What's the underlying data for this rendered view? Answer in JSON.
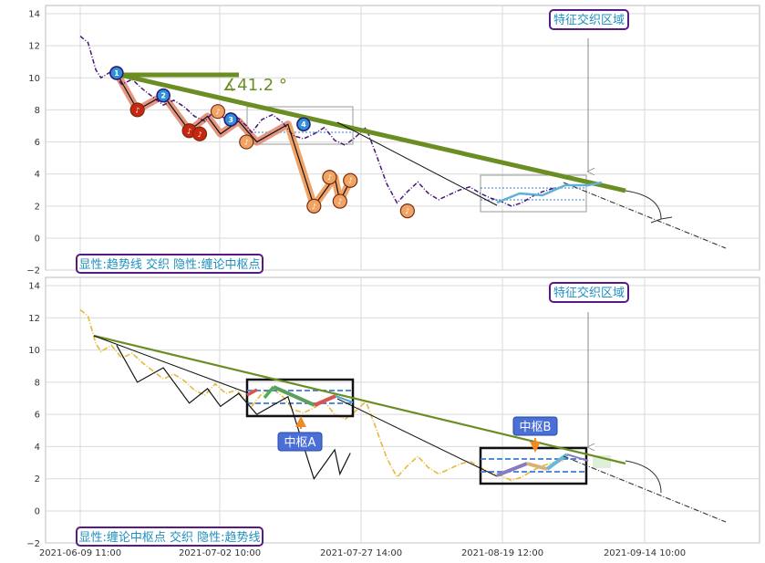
{
  "chart_data": [
    {
      "type": "line",
      "panel": "top",
      "title": "",
      "xlabel": "",
      "ylabel": "",
      "ylim": [
        -2,
        14.5
      ],
      "yticks": [
        -2,
        0,
        2,
        4,
        6,
        8,
        10,
        12,
        14
      ],
      "x_ticks": [
        "2021-06-09 11:00",
        "2021-07-02 10:00",
        "2021-07-27 14:00",
        "2021-08-19 12:00",
        "2021-09-14 10:00"
      ],
      "grid": true,
      "annotations": {
        "feature_label": "特征交织区域",
        "bottom_label": "显性:趋势线 交织 隐性:缠论中枢点",
        "angle_label": "∡41.2 °"
      },
      "series": [
        {
          "role": "price",
          "x": [
            0,
            1.5,
            3,
            4,
            6,
            8,
            10,
            12,
            14,
            16,
            18,
            20,
            22,
            24,
            26,
            28,
            30,
            32,
            33,
            35,
            37,
            39,
            41,
            43,
            45,
            47,
            49,
            51,
            53,
            55,
            57,
            59,
            61,
            63,
            65,
            67,
            69,
            71,
            73,
            75,
            77,
            79,
            81,
            83,
            85,
            87,
            89,
            91,
            93
          ],
          "y": [
            12.6,
            12.2,
            10.5,
            10.0,
            10.4,
            9.6,
            9.9,
            9.3,
            8.8,
            8.3,
            8.6,
            8.2,
            7.6,
            7.3,
            8.0,
            7.4,
            7.6,
            7.0,
            6.6,
            7.4,
            7.7,
            7.2,
            6.4,
            6.2,
            6.5,
            6.9,
            6.1,
            5.8,
            6.3,
            6.9,
            5.2,
            3.4,
            2.2,
            2.9,
            3.5,
            2.8,
            2.4,
            2.7,
            3.0,
            3.2,
            2.8,
            2.5,
            2.3,
            2.0,
            2.2,
            2.6,
            2.9,
            3.1,
            3.2
          ]
        },
        {
          "role": "chan-stroke",
          "x": [
            7,
            11,
            16,
            21,
            24.5,
            27,
            30.5,
            34,
            40,
            45,
            49,
            50,
            52
          ],
          "y": [
            10.3,
            8.0,
            8.9,
            6.7,
            7.6,
            6.5,
            7.3,
            6.0,
            7.1,
            2.0,
            3.8,
            2.3,
            3.6
          ]
        }
      ],
      "pivot_points": [
        {
          "label": "1",
          "x": 7,
          "y": 10.3
        },
        {
          "label": "2",
          "x": 16,
          "y": 8.9
        },
        {
          "label": "3",
          "x": 29,
          "y": 7.4
        },
        {
          "label": "4",
          "x": 43,
          "y": 7.1
        }
      ]
    },
    {
      "type": "line",
      "panel": "bottom",
      "title": "",
      "xlabel": "",
      "ylabel": "",
      "ylim": [
        -2,
        14.5
      ],
      "yticks": [
        -2,
        0,
        2,
        4,
        6,
        8,
        10,
        12,
        14
      ],
      "x_ticks": [
        "2021-06-09 11:00",
        "2021-07-02 10:00",
        "2021-07-27 14:00",
        "2021-08-19 12:00",
        "2021-09-14 10:00"
      ],
      "grid": true,
      "annotations": {
        "feature_label": "特征交织区域",
        "bottom_label": "显性:缠论中枢点 交织 隐性:趋势线",
        "zhongshu_a": "中枢A",
        "zhongshu_b": "中枢B"
      },
      "zhongshu": [
        {
          "name": "中枢A",
          "ylim": [
            6.0,
            8.1
          ]
        },
        {
          "name": "中枢B",
          "ylim": [
            1.8,
            3.9
          ]
        }
      ]
    }
  ]
}
